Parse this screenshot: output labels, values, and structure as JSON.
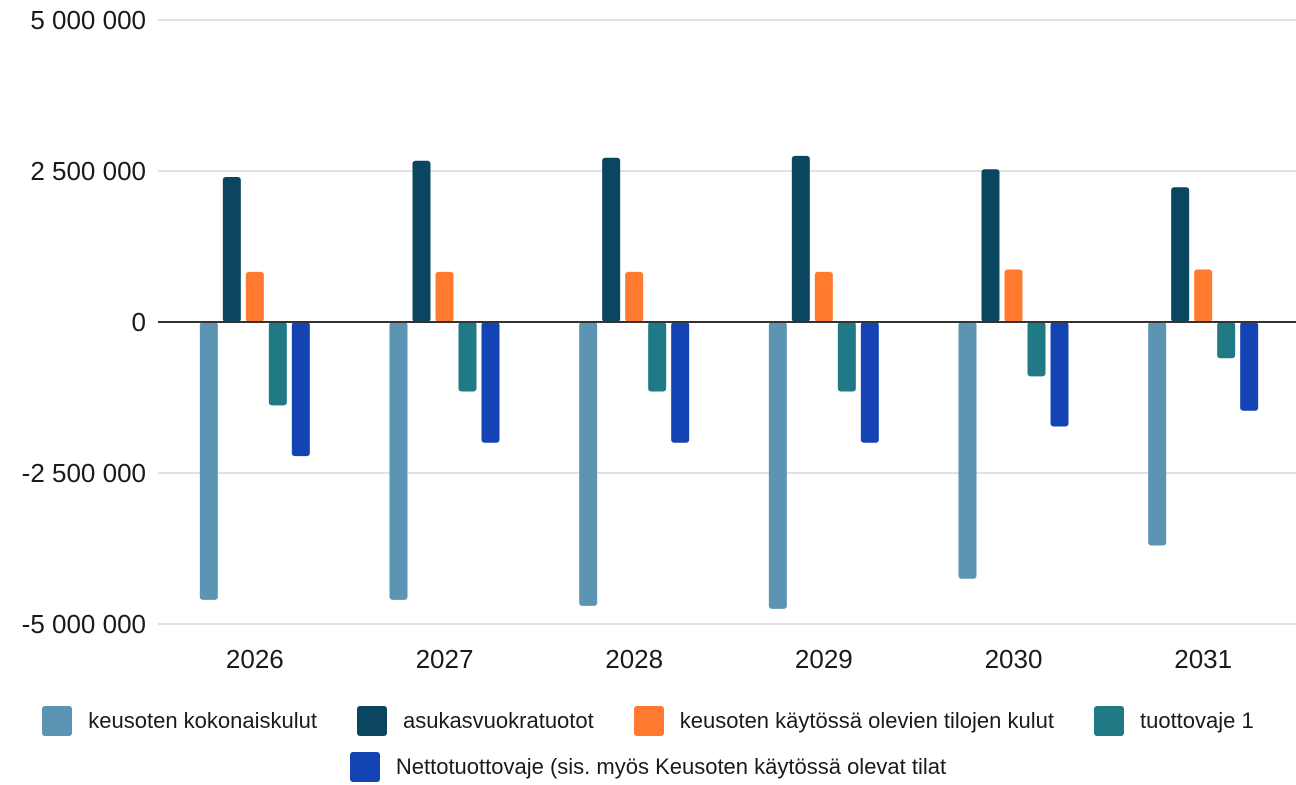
{
  "chart_data": {
    "type": "bar",
    "categories": [
      "2026",
      "2027",
      "2028",
      "2029",
      "2030",
      "2031"
    ],
    "y_ticks": [
      "5 000 000",
      "2 500 000",
      "0",
      "-2 500 000",
      "-5 000 000"
    ],
    "ylim": [
      -5000000,
      5000000
    ],
    "grid": true,
    "legend_position": "bottom",
    "series": [
      {
        "name": "keusoten kokonaiskulut",
        "color": "#5b95b3",
        "values": [
          -4600000,
          -4600000,
          -4700000,
          -4750000,
          -4250000,
          -3700000
        ]
      },
      {
        "name": "asukasvuokratuotot",
        "color": "#0b4660",
        "values": [
          2400000,
          2670000,
          2720000,
          2750000,
          2530000,
          2230000
        ]
      },
      {
        "name": "keusoten käytössä olevien tilojen kulut",
        "color": "#ff7a2f",
        "values": [
          830000,
          830000,
          830000,
          830000,
          870000,
          870000
        ]
      },
      {
        "name": "tuottovaje 1",
        "color": "#1f7a86",
        "values": [
          -1380000,
          -1150000,
          -1150000,
          -1150000,
          -900000,
          -600000
        ]
      },
      {
        "name": "Nettotuottovaje (sis. myös Keusoten käytössä olevat tilat",
        "color": "#1444b3",
        "values": [
          -2220000,
          -2000000,
          -2000000,
          -2000000,
          -1730000,
          -1470000
        ]
      }
    ]
  }
}
